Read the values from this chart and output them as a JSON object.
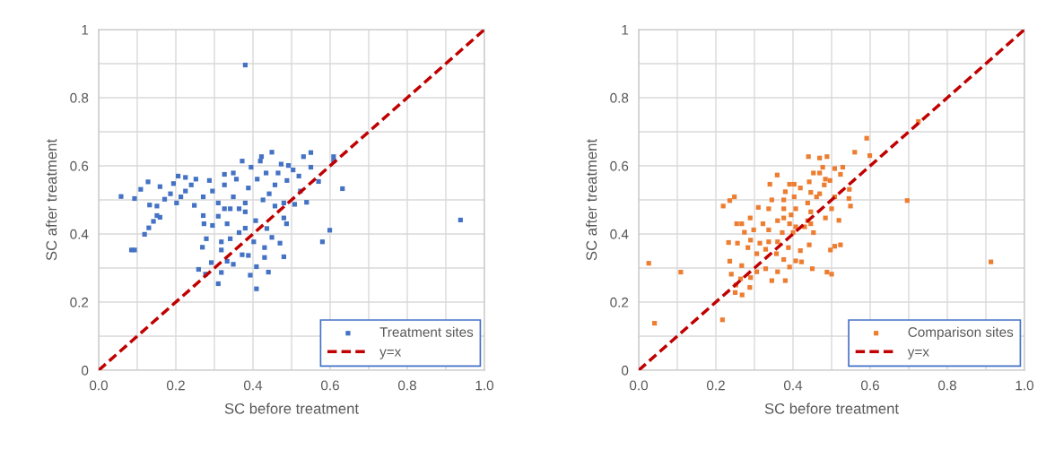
{
  "chart_data": [
    {
      "type": "scatter",
      "xlabel": "SC before treatment",
      "ylabel": "SC after treatment",
      "xlim": [
        0,
        1
      ],
      "ylim": [
        0,
        1
      ],
      "xticks": [
        {
          "value": 0,
          "label": "0.0"
        },
        {
          "value": 0.1,
          "label": null
        },
        {
          "value": 0.2,
          "label": "0.2"
        },
        {
          "value": 0.3,
          "label": null
        },
        {
          "value": 0.4,
          "label": "0.4"
        },
        {
          "value": 0.5,
          "label": null
        },
        {
          "value": 0.6,
          "label": "0.6"
        },
        {
          "value": 0.7,
          "label": null
        },
        {
          "value": 0.8,
          "label": "0.8"
        },
        {
          "value": 0.9,
          "label": null
        },
        {
          "value": 1,
          "label": "1.0"
        }
      ],
      "yticks": [
        0,
        {
          "value": 0.1,
          "label": null
        },
        0.2,
        {
          "value": 0.3,
          "label": null
        },
        0.4,
        {
          "value": 0.5,
          "label": null
        },
        0.6,
        {
          "value": 0.7,
          "label": null
        },
        0.8,
        {
          "value": 0.9,
          "label": null
        },
        1
      ],
      "grid": true,
      "legend": "bottom right",
      "marker": "square",
      "series": [
        {
          "name": "Treatment sites",
          "color": "#4472c4",
          "x": [
            0.38,
            0.938,
            0.058,
            0.093,
            0.093,
            0.085,
            0.119,
            0.13,
            0.142,
            0.159,
            0.151,
            0.109,
            0.128,
            0.159,
            0.132,
            0.151,
            0.171,
            0.194,
            0.206,
            0.225,
            0.252,
            0.202,
            0.225,
            0.248,
            0.271,
            0.273,
            0.295,
            0.279,
            0.269,
            0.259,
            0.277,
            0.292,
            0.31,
            0.318,
            0.318,
            0.318,
            0.333,
            0.349,
            0.341,
            0.372,
            0.388,
            0.393,
            0.409,
            0.409,
            0.43,
            0.44,
            0.43,
            0.449,
            0.47,
            0.48,
            0.487,
            0.436,
            0.402,
            0.38,
            0.364,
            0.333,
            0.31,
            0.271,
            0.295,
            0.326,
            0.349,
            0.364,
            0.38,
            0.388,
            0.411,
            0.419,
            0.449,
            0.422,
            0.473,
            0.492,
            0.531,
            0.55,
            0.55,
            0.519,
            0.488,
            0.457,
            0.442,
            0.48,
            0.508,
            0.539,
            0.523,
            0.57,
            0.609,
            0.609,
            0.632,
            0.599,
            0.58,
            0.48,
            0.457,
            0.372,
            0.395,
            0.407,
            0.38,
            0.341,
            0.31,
            0.186,
            0.213,
            0.24,
            0.287,
            0.326,
            0.357,
            0.434,
            0.465,
            0.504,
            0.426,
            0.326,
            0.349
          ],
          "values": [
            0.896,
            0.441,
            0.51,
            0.504,
            0.353,
            0.353,
            0.399,
            0.418,
            0.437,
            0.449,
            0.454,
            0.531,
            0.553,
            0.539,
            0.485,
            0.482,
            0.502,
            0.548,
            0.57,
            0.566,
            0.561,
            0.491,
            0.526,
            0.484,
            0.454,
            0.43,
            0.425,
            0.386,
            0.361,
            0.296,
            0.282,
            0.316,
            0.254,
            0.287,
            0.377,
            0.353,
            0.32,
            0.311,
            0.386,
            0.339,
            0.337,
            0.279,
            0.239,
            0.304,
            0.36,
            0.288,
            0.331,
            0.39,
            0.373,
            0.333,
            0.43,
            0.416,
            0.377,
            0.417,
            0.404,
            0.43,
            0.452,
            0.509,
            0.526,
            0.544,
            0.509,
            0.474,
            0.491,
            0.535,
            0.561,
            0.614,
            0.64,
            0.627,
            0.605,
            0.601,
            0.627,
            0.639,
            0.596,
            0.57,
            0.557,
            0.544,
            0.518,
            0.491,
            0.487,
            0.493,
            0.526,
            0.554,
            0.627,
            0.614,
            0.533,
            0.411,
            0.377,
            0.447,
            0.482,
            0.614,
            0.596,
            0.439,
            0.465,
            0.474,
            0.491,
            0.518,
            0.509,
            0.544,
            0.557,
            0.575,
            0.561,
            0.579,
            0.579,
            0.588,
            0.5,
            0.474,
            0.579
          ]
        },
        {
          "type": "line",
          "name": "y=x",
          "color": "#c00000",
          "line_style": "dashed",
          "marker": "none",
          "x": [
            0,
            1
          ],
          "values": [
            0,
            1
          ]
        }
      ]
    },
    {
      "type": "scatter",
      "xlabel": "SC before treatment",
      "ylabel": "SC after treatment",
      "xlim": [
        0,
        1
      ],
      "ylim": [
        0,
        1
      ],
      "xticks": [
        {
          "value": 0,
          "label": "0.0"
        },
        {
          "value": 0.1,
          "label": null
        },
        {
          "value": 0.2,
          "label": "0.2"
        },
        {
          "value": 0.3,
          "label": null
        },
        {
          "value": 0.4,
          "label": "0.4"
        },
        {
          "value": 0.5,
          "label": null
        },
        {
          "value": 0.6,
          "label": "0.6"
        },
        {
          "value": 0.7,
          "label": null
        },
        {
          "value": 0.8,
          "label": "0.8"
        },
        {
          "value": 0.9,
          "label": null
        },
        {
          "value": 1,
          "label": "1.0"
        }
      ],
      "yticks": [
        0,
        {
          "value": 0.1,
          "label": null
        },
        0.2,
        {
          "value": 0.3,
          "label": null
        },
        0.4,
        {
          "value": 0.5,
          "label": null
        },
        0.6,
        {
          "value": 0.7,
          "label": null
        },
        0.8,
        {
          "value": 0.9,
          "label": null
        },
        1
      ],
      "grid": true,
      "legend": "bottom right",
      "marker": "square",
      "series": [
        {
          "name": "Comparison sites",
          "color": "#ed7d31",
          "x": [
            0.026,
            0.041,
            0.109,
            0.217,
            0.696,
            0.913,
            0.725,
            0.591,
            0.56,
            0.599,
            0.44,
            0.469,
            0.488,
            0.529,
            0.508,
            0.477,
            0.453,
            0.484,
            0.442,
            0.359,
            0.34,
            0.391,
            0.403,
            0.38,
            0.419,
            0.446,
            0.469,
            0.546,
            0.545,
            0.549,
            0.523,
            0.508,
            0.5,
            0.484,
            0.519,
            0.523,
            0.508,
            0.497,
            0.488,
            0.5,
            0.45,
            0.422,
            0.407,
            0.419,
            0.442,
            0.453,
            0.43,
            0.446,
            0.438,
            0.407,
            0.403,
            0.376,
            0.376,
            0.345,
            0.337,
            0.36,
            0.391,
            0.4,
            0.388,
            0.36,
            0.337,
            0.322,
            0.298,
            0.289,
            0.31,
            0.267,
            0.254,
            0.274,
            0.29,
            0.256,
            0.233,
            0.283,
            0.306,
            0.329,
            0.357,
            0.376,
            0.391,
            0.38,
            0.345,
            0.36,
            0.329,
            0.306,
            0.29,
            0.288,
            0.267,
            0.236,
            0.24,
            0.264,
            0.252,
            0.25,
            0.268,
            0.219,
            0.236,
            0.248,
            0.314,
            0.337,
            0.372,
            0.407,
            0.376,
            0.395,
            0.461,
            0.481,
            0.496,
            0.469,
            0.438,
            0.446
          ],
          "values": [
            0.314,
            0.138,
            0.288,
            0.148,
            0.498,
            0.318,
            0.73,
            0.681,
            0.64,
            0.63,
            0.627,
            0.623,
            0.627,
            0.596,
            0.592,
            0.596,
            0.579,
            0.561,
            0.553,
            0.573,
            0.546,
            0.546,
            0.546,
            0.524,
            0.535,
            0.522,
            0.518,
            0.531,
            0.504,
            0.482,
            0.575,
            0.509,
            0.474,
            0.447,
            0.44,
            0.368,
            0.364,
            0.353,
            0.288,
            0.282,
            0.298,
            0.318,
            0.321,
            0.351,
            0.368,
            0.404,
            0.421,
            0.465,
            0.491,
            0.474,
            0.509,
            0.474,
            0.5,
            0.5,
            0.474,
            0.439,
            0.43,
            0.404,
            0.36,
            0.377,
            0.412,
            0.43,
            0.412,
            0.447,
            0.478,
            0.43,
            0.43,
            0.405,
            0.382,
            0.373,
            0.375,
            0.36,
            0.342,
            0.355,
            0.342,
            0.325,
            0.303,
            0.263,
            0.263,
            0.289,
            0.298,
            0.289,
            0.272,
            0.243,
            0.307,
            0.32,
            0.282,
            0.268,
            0.25,
            0.228,
            0.221,
            0.482,
            0.498,
            0.509,
            0.373,
            0.377,
            0.404,
            0.421,
            0.447,
            0.456,
            0.509,
            0.544,
            0.557,
            0.579,
            0.439,
            0.43
          ]
        },
        {
          "type": "line",
          "name": "y=x",
          "color": "#c00000",
          "line_style": "dashed",
          "marker": "none",
          "x": [
            0,
            1
          ],
          "values": [
            0,
            1
          ]
        }
      ]
    }
  ]
}
